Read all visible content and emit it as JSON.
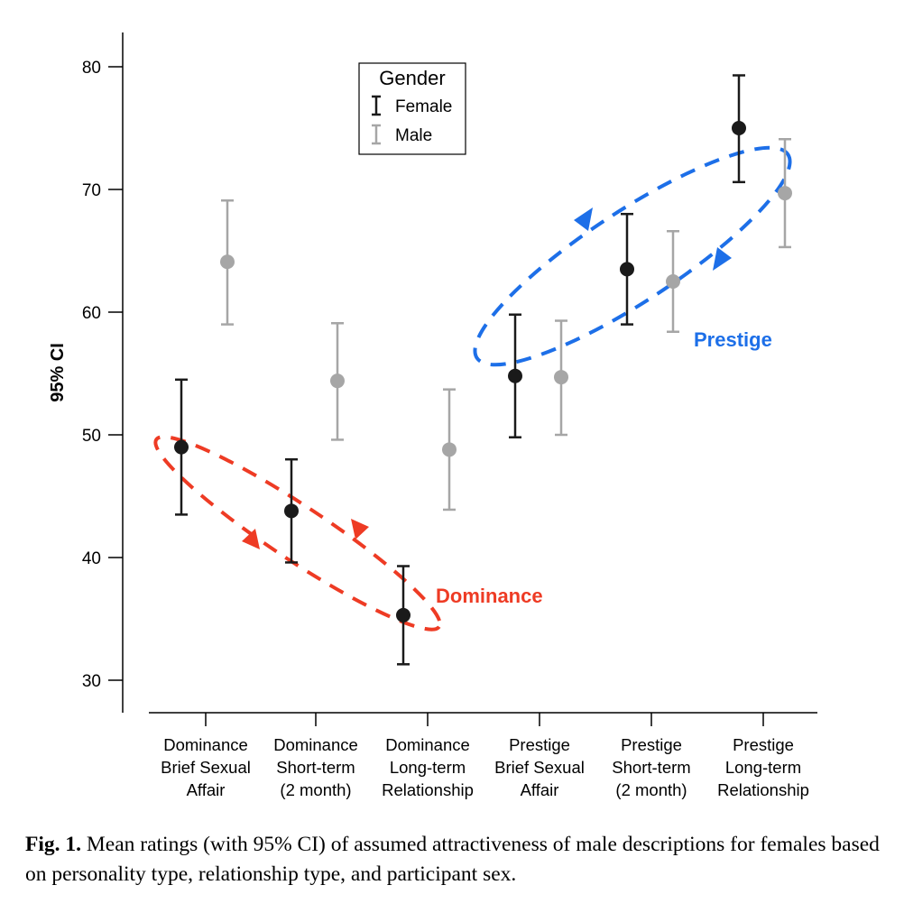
{
  "chart_data": {
    "type": "scatter",
    "subtype": "point-with-error-bars",
    "ylabel": "95% CI",
    "xlabel": "",
    "ylim": [
      27,
      83
    ],
    "yticks": [
      30,
      40,
      50,
      60,
      70,
      80
    ],
    "categories": [
      [
        "Dominance",
        "Brief Sexual",
        "Affair"
      ],
      [
        "Dominance",
        "Short-term",
        "(2 month)"
      ],
      [
        "Dominance",
        "Long-term",
        "Relationship"
      ],
      [
        "Prestige",
        "Brief Sexual",
        "Affair"
      ],
      [
        "Prestige",
        "Short-term",
        "(2 month)"
      ],
      [
        "Prestige",
        "Long-term",
        "Relationship"
      ]
    ],
    "legend": {
      "title": "Gender",
      "position": "top-center"
    },
    "series": [
      {
        "name": "Female",
        "color": "#1a1a1a",
        "means": [
          49.0,
          43.8,
          35.3,
          54.8,
          63.5,
          75.0
        ],
        "lower": [
          43.5,
          39.6,
          31.3,
          49.8,
          59.0,
          70.6
        ],
        "upper": [
          54.5,
          48.0,
          39.3,
          59.8,
          68.0,
          79.3
        ]
      },
      {
        "name": "Male",
        "color": "#a6a6a6",
        "means": [
          64.1,
          54.4,
          48.8,
          54.7,
          62.5,
          69.7
        ],
        "lower": [
          59.0,
          49.6,
          43.9,
          50.0,
          58.4,
          65.3
        ],
        "upper": [
          69.1,
          59.1,
          53.7,
          59.3,
          66.6,
          74.1
        ]
      }
    ],
    "annotations": [
      {
        "label": "Dominance",
        "color": "#ee3b24"
      },
      {
        "label": "Prestige",
        "color": "#1d6fe8"
      }
    ]
  },
  "caption": {
    "label": "Fig. 1.",
    "text": " Mean ratings (with 95% CI) of assumed attractiveness of male descriptions for females based on personality type, relationship type, and participant sex."
  }
}
